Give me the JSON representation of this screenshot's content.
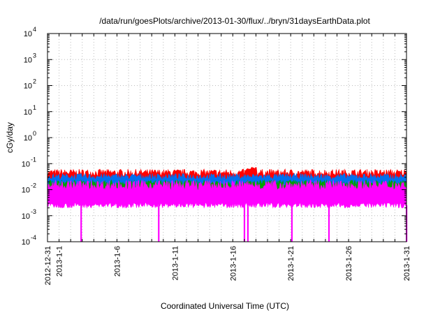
{
  "chart_data": {
    "type": "area",
    "title": "/data/run/goesPlots/archive/2013-01-30/flux/../bryn/31daysEarthData.plot",
    "xlabel": "Coordinated Universal Time (UTC)",
    "ylabel": "cGy/day",
    "yscale": "log",
    "ylim": [
      0.0001,
      10000
    ],
    "xlim": [
      "2012-12-31",
      "2013-01-31"
    ],
    "grid": true,
    "y_ticks": [
      {
        "base": "10",
        "exp": "-4"
      },
      {
        "base": "10",
        "exp": "-3"
      },
      {
        "base": "10",
        "exp": "-2"
      },
      {
        "base": "10",
        "exp": "-1"
      },
      {
        "base": "10",
        "exp": "0"
      },
      {
        "base": "10",
        "exp": "1"
      },
      {
        "base": "10",
        "exp": "2"
      },
      {
        "base": "10",
        "exp": "3"
      },
      {
        "base": "10",
        "exp": "4"
      }
    ],
    "x_ticks": [
      "2012-12-31",
      "2013-1-1",
      "2013-1-6",
      "2013-1-11",
      "2013-1-16",
      "2013-1-21",
      "2013-1-26",
      "2013-1-31"
    ],
    "series": [
      {
        "color": "#ff0000",
        "top": 0.045,
        "bottom": 0.02,
        "noise": 0.14,
        "spikes": [
          {
            "day": 17.8,
            "value": 0.075
          },
          {
            "day": 17.4,
            "value": 0.065
          }
        ]
      },
      {
        "color": "#0070f0",
        "top": 0.032,
        "bottom": 0.012,
        "noise": 0.12
      },
      {
        "color": "#00a000",
        "top": 0.018,
        "bottom": 0.01,
        "noise": 0.12
      },
      {
        "color": "#ff00ff",
        "top": 0.015,
        "bottom": 0.0025,
        "noise": 0.2,
        "dropouts": [
          2.9,
          9.6,
          17.0,
          17.3,
          21.1,
          24.3,
          31.0
        ]
      }
    ]
  }
}
